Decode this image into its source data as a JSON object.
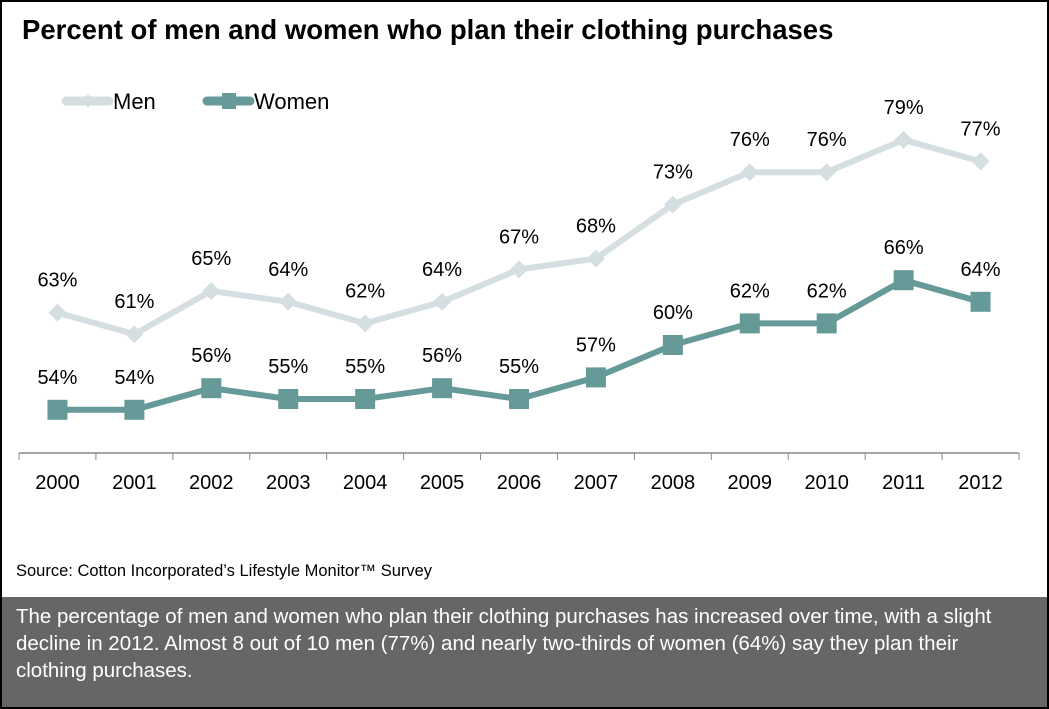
{
  "title": "Percent of men and women who plan their clothing purchases",
  "source": "Source: Cotton Incorporated’s Lifestyle Monitor™ Survey",
  "summary": "The percentage of men and women who plan their clothing purchases has increased over time, with a slight decline in 2012.  Almost 8 out of 10 men (77%) and nearly two-thirds of women (64%) say they plan their clothing purchases.",
  "chart_data": {
    "type": "line",
    "title": "Percent of men and women who plan their clothing purchases",
    "xlabel": "",
    "ylabel": "",
    "categories": [
      "2000",
      "2001",
      "2002",
      "2003",
      "2004",
      "2005",
      "2006",
      "2007",
      "2008",
      "2009",
      "2010",
      "2011",
      "2012"
    ],
    "ylim": [
      50,
      83
    ],
    "grid": false,
    "legend": "top-left",
    "series": [
      {
        "name": "Men",
        "color": "#d5dfe2",
        "marker": "diamond",
        "values": [
          63,
          61,
          65,
          64,
          62,
          64,
          67,
          68,
          73,
          76,
          76,
          79,
          77
        ],
        "labels": [
          "63%",
          "61%",
          "65%",
          "64%",
          "62%",
          "64%",
          "67%",
          "68%",
          "73%",
          "76%",
          "76%",
          "79%",
          "77%"
        ]
      },
      {
        "name": "Women",
        "color": "#669a99",
        "marker": "square",
        "values": [
          54,
          54,
          56,
          55,
          55,
          56,
          55,
          57,
          60,
          62,
          62,
          66,
          64
        ],
        "labels": [
          "54%",
          "54%",
          "56%",
          "55%",
          "55%",
          "56%",
          "55%",
          "57%",
          "60%",
          "62%",
          "62%",
          "66%",
          "64%"
        ]
      }
    ]
  }
}
